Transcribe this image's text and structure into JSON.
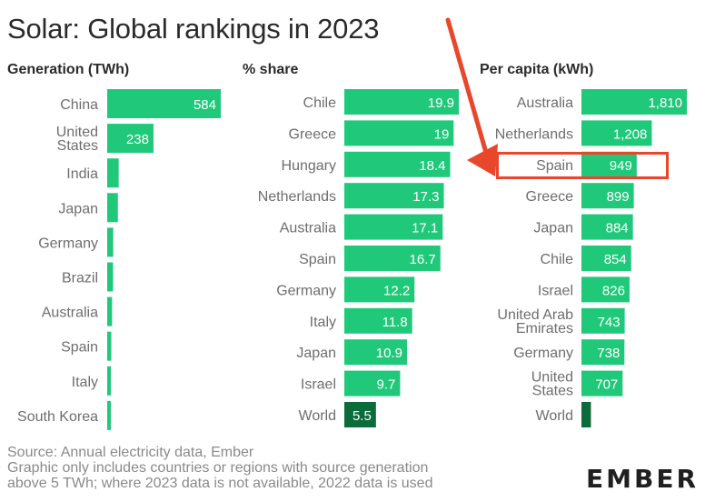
{
  "header": {
    "title": "Solar: Global rankings in 2023"
  },
  "colors": {
    "bar": "#20c97a",
    "world_bar": "#0c6b3a",
    "label": "#6e6e6e",
    "annotation": "#e8472c"
  },
  "chart_data": [
    {
      "type": "bar",
      "orientation": "horizontal",
      "title": "Generation (TWh)",
      "categories": [
        "China",
        [
          "United",
          "States"
        ],
        "India",
        "Japan",
        "Germany",
        "Brazil",
        "Australia",
        "Spain",
        "Italy",
        "South Korea"
      ],
      "values": [
        584,
        238,
        59,
        55,
        31,
        30,
        25,
        21,
        18,
        13
      ],
      "value_labels": [
        "584",
        "238",
        "",
        "",
        "",
        "",
        "",
        "",
        "",
        ""
      ]
    },
    {
      "type": "bar",
      "orientation": "horizontal",
      "title": "% share",
      "categories": [
        "Chile",
        "Greece",
        "Hungary",
        "Netherlands",
        "Australia",
        "Spain",
        "Germany",
        "Italy",
        "Japan",
        "Israel",
        "World"
      ],
      "values": [
        19.9,
        19,
        18.4,
        17.3,
        17.1,
        16.7,
        12.2,
        11.8,
        10.9,
        9.7,
        5.5
      ],
      "value_labels": [
        "19.9",
        "19",
        "18.4",
        "17.3",
        "17.1",
        "16.7",
        "12.2",
        "11.8",
        "10.9",
        "9.7",
        "5.5"
      ]
    },
    {
      "type": "bar",
      "orientation": "horizontal",
      "title": "Per capita (kWh)",
      "categories": [
        "Australia",
        "Netherlands",
        "Spain",
        "Greece",
        "Japan",
        "Chile",
        "Israel",
        [
          "United Arab",
          "Emirates"
        ],
        "Germany",
        [
          "United",
          "States"
        ],
        "World"
      ],
      "values": [
        1810,
        1208,
        949,
        899,
        884,
        854,
        826,
        743,
        738,
        707,
        163
      ],
      "value_labels": [
        "1,810",
        "1,208",
        "949",
        "899",
        "884",
        "854",
        "826",
        "743",
        "738",
        "707",
        ""
      ]
    }
  ],
  "footer": {
    "source_lines": [
      "Source: Annual electricity data, Ember",
      "Graphic only includes countries or regions with source generation",
      "above 5 TWh; where 2023 data is not available, 2022 data is used"
    ],
    "logo": "EMBER"
  }
}
